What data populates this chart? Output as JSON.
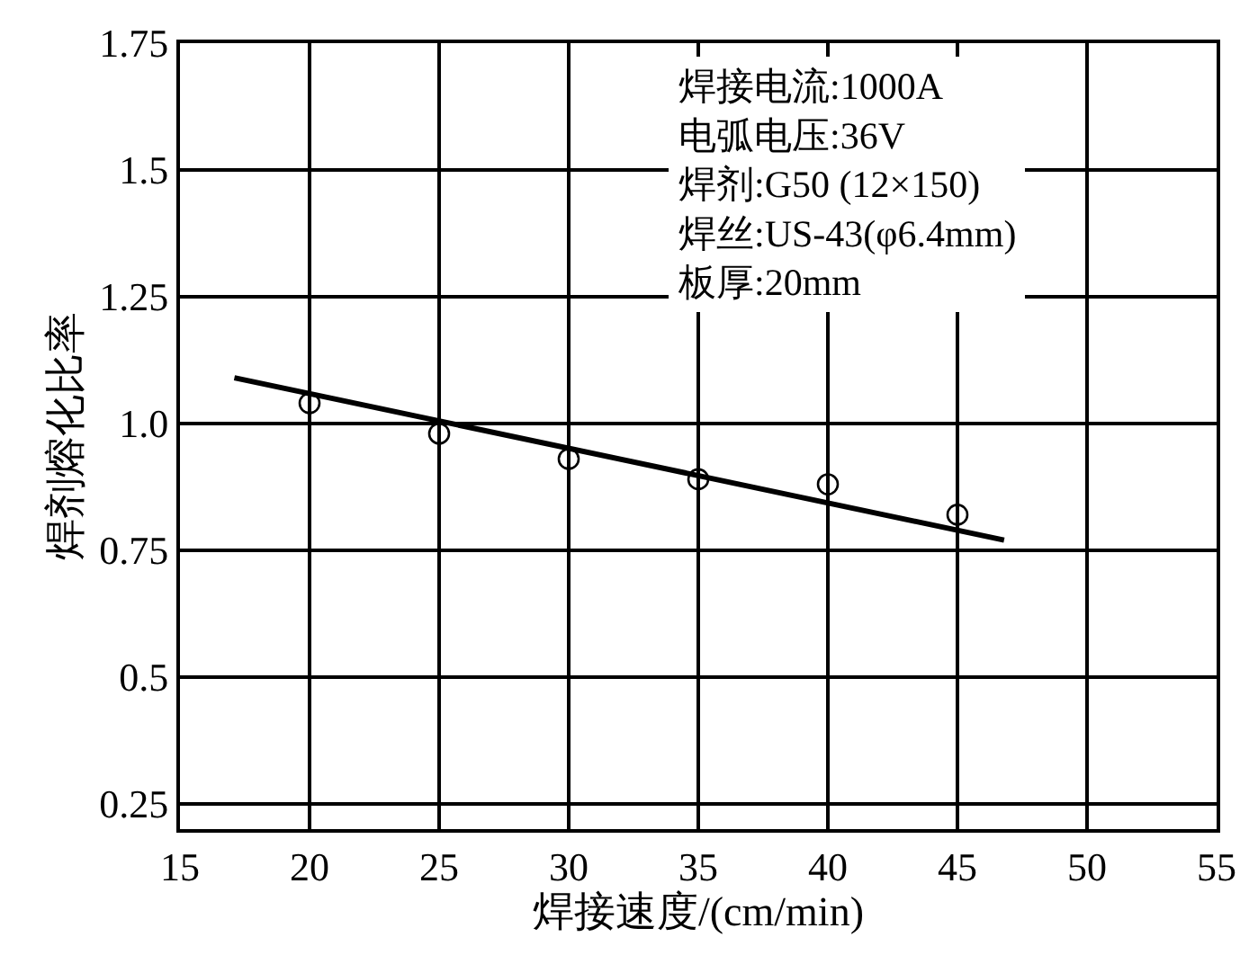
{
  "chart_data": {
    "type": "scatter",
    "xlabel": "焊接速度/(cm/min)",
    "ylabel": "焊剂熔化比率",
    "series": [
      {
        "type": "scatter",
        "color": "#000000",
        "marker": "circle",
        "x": [
          20,
          25,
          30,
          35,
          40,
          45
        ],
        "values": [
          1.04,
          0.98,
          0.93,
          0.89,
          0.88,
          0.82
        ]
      },
      {
        "type": "line",
        "color": "#000000",
        "marker": "none",
        "line_style": "solid",
        "x": [
          17.1,
          46.8
        ],
        "values": [
          1.09,
          0.77
        ]
      }
    ],
    "xlim": [
      15,
      55
    ],
    "xticks": [
      15,
      20,
      25,
      30,
      35,
      40,
      45,
      50,
      55
    ],
    "ylim": [
      0.2,
      1.75
    ],
    "yticks": [
      0.25,
      0.5,
      0.75,
      {
        "value": 1,
        "label": "1.0"
      },
      1.25,
      1.5,
      1.75
    ],
    "grid": true,
    "annotations": [
      "焊接电流:1000A",
      "电弧电压:36V",
      "焊剂:G50 (12×150)",
      "焊丝:US-43(φ6.4mm)",
      "板厚:20mm"
    ]
  }
}
